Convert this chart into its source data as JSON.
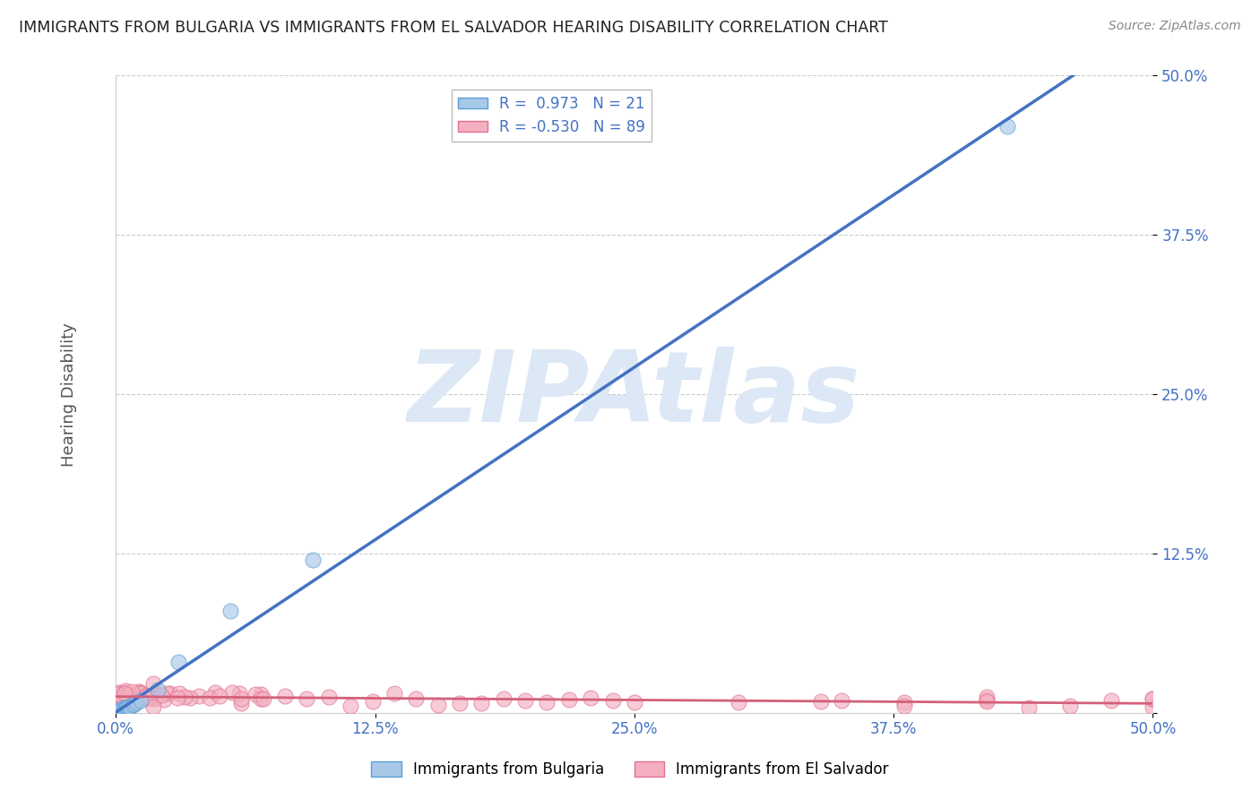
{
  "title": "IMMIGRANTS FROM BULGARIA VS IMMIGRANTS FROM EL SALVADOR HEARING DISABILITY CORRELATION CHART",
  "source": "Source: ZipAtlas.com",
  "ylabel": "Hearing Disability",
  "xlim": [
    0,
    0.5
  ],
  "ylim": [
    0,
    0.5
  ],
  "xtick_vals": [
    0.0,
    0.125,
    0.25,
    0.375,
    0.5
  ],
  "ytick_vals": [
    0.0,
    0.125,
    0.25,
    0.375,
    0.5
  ],
  "xtick_labels": [
    "0.0%",
    "12.5%",
    "25.0%",
    "37.5%",
    "50.0%"
  ],
  "ytick_labels": [
    "",
    "12.5%",
    "25.0%",
    "37.5%",
    "50.0%"
  ],
  "legend_entries": [
    {
      "R": 0.973,
      "N": 21
    },
    {
      "R": -0.53,
      "N": 89
    }
  ],
  "bulgaria_color": "#a8c8e8",
  "bulgaria_edge_color": "#5a9fd4",
  "bulgaria_line_color": "#4472C4",
  "el_salvador_color": "#f4b0c0",
  "el_salvador_edge_color": "#e07090",
  "el_salvador_line_color": "#d4607a",
  "background_color": "#ffffff",
  "grid_color": "#cccccc",
  "title_color": "#222222",
  "watermark_text": "ZIPAtlas",
  "watermark_color": "#dce8f5",
  "axis_label_color": "#4472C4",
  "ylabel_color": "#555555",
  "source_color": "#888888",
  "legend_text_color": "#4472C4",
  "legend_border_color": "#bbbbbb"
}
